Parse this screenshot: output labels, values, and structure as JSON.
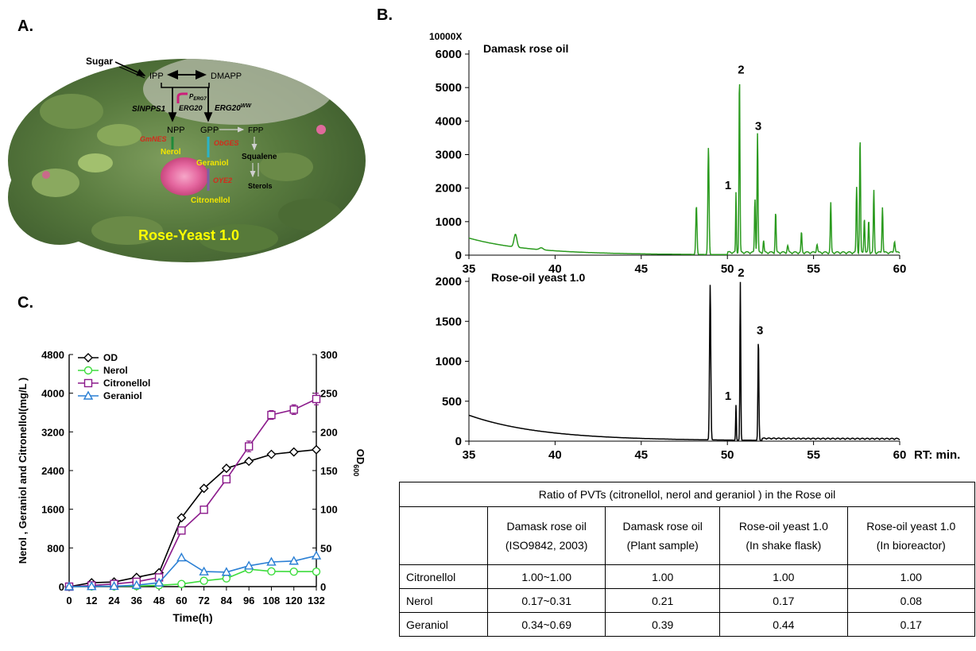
{
  "panel_a": {
    "label": "A.",
    "sugar": "Sugar",
    "ipp": "IPP",
    "dmapp": "DMAPP",
    "slnpps1": "SlNPPS1",
    "p_erg7": "P",
    "p_erg7_sub": "ERG7",
    "erg20": "ERG20",
    "erg20ww": "ERG20",
    "erg20ww_sup": "WW",
    "npp": "NPP",
    "gpp": "GPP",
    "fpp": "FPP",
    "gmnes": "GmNES",
    "obges": "ObGES",
    "nerol": "Nerol",
    "geraniol": "Geraniol",
    "squalene": "Squalene",
    "sterols": "Sterols",
    "oye2": "OYE2",
    "citronellol": "Citronellol",
    "banner": "Rose-Yeast 1.0",
    "colors": {
      "enzyme": "#d42a1c",
      "product": "#f2e600",
      "banner": "#ffff00",
      "promoter": "#cc1f7a"
    }
  },
  "panel_b": {
    "label": "B.",
    "top": {
      "scale_label": "10000X",
      "title": "Damask rose oil",
      "y_ticks": [
        "6000",
        "5000",
        "4000",
        "3000",
        "2000",
        "1000",
        "0"
      ],
      "y_max": 6000,
      "color": "#2a9a1e",
      "peaks": [
        {
          "label": "1",
          "x": 50.5,
          "y": 1780
        },
        {
          "label": "2",
          "x": 50.7,
          "y": 5230
        },
        {
          "label": "3",
          "x": 51.7,
          "y": 3550
        }
      ]
    },
    "bottom": {
      "title": "Rose-oil yeast 1.0",
      "y_ticks": [
        "2000",
        "1500",
        "1000",
        "500",
        "0"
      ],
      "y_max": 2000,
      "color": "#000000",
      "peaks": [
        {
          "label": "1",
          "x": 50.5,
          "y": 440
        },
        {
          "label": "2",
          "x": 50.7,
          "y": 1980
        },
        {
          "label": "3",
          "x": 51.8,
          "y": 1260
        }
      ]
    },
    "x_ticks": [
      "35",
      "40",
      "45",
      "50",
      "55",
      "60"
    ],
    "x_min": 35,
    "x_max": 60,
    "x_unit": "RT: min."
  },
  "panel_c": {
    "label": "C."
  },
  "chart_data": {
    "type": "line",
    "title": "",
    "xlabel": "Time(h)",
    "ylabel": "Nerol , Geraniol and Citronellol(mg/L )",
    "ylabel_right": "OD",
    "ylabel_right_sub": "600",
    "x": [
      0,
      12,
      24,
      36,
      48,
      60,
      72,
      84,
      96,
      108,
      120,
      132
    ],
    "x_ticks": [
      "0",
      "12",
      "24",
      "36",
      "48",
      "60",
      "72",
      "84",
      "96",
      "108",
      "120",
      "132"
    ],
    "ylim": [
      0,
      4800
    ],
    "y_ticks": [
      "0",
      "800",
      "1600",
      "2400",
      "3200",
      "4000",
      "4800"
    ],
    "ylim_right": [
      0,
      300
    ],
    "y_ticks_right": [
      "0",
      "50",
      "100",
      "150",
      "200",
      "250",
      "300"
    ],
    "legend_position": "top-left",
    "series": [
      {
        "name": "OD",
        "axis": "right",
        "marker": "diamond",
        "color": "#000000",
        "values": [
          0,
          5,
          6,
          12,
          18,
          89,
          127,
          153,
          162,
          171,
          174,
          177
        ]
      },
      {
        "name": "Nerol",
        "axis": "left",
        "marker": "circle",
        "color": "#3ddc3d",
        "values": [
          0,
          5,
          8,
          12,
          28,
          55,
          120,
          170,
          360,
          315,
          310,
          310
        ]
      },
      {
        "name": "Citronellol",
        "axis": "left",
        "marker": "square",
        "color": "#8b1a8b",
        "values": [
          0,
          25,
          55,
          100,
          190,
          1160,
          1590,
          2220,
          2900,
          3550,
          3660,
          3880
        ],
        "errors": [
          0,
          0,
          0,
          0,
          0,
          60,
          60,
          70,
          110,
          90,
          100,
          120
        ]
      },
      {
        "name": "Geraniol",
        "axis": "left",
        "marker": "triangle",
        "color": "#2a7fd4",
        "values": [
          0,
          5,
          10,
          30,
          80,
          600,
          310,
          300,
          430,
          510,
          530,
          640
        ]
      }
    ]
  },
  "table": {
    "title": "Ratio of PVTs (citronellol, nerol and geraniol ) in the Rose oil",
    "headers": [
      {
        "line1": "Damask rose oil",
        "line2": "(ISO9842, 2003)"
      },
      {
        "line1": "Damask rose oil",
        "line2": "(Plant sample)"
      },
      {
        "line1": "Rose-oil yeast 1.0",
        "line2": "(In shake flask)"
      },
      {
        "line1": "Rose-oil yeast 1.0",
        "line2": "(In bioreactor)"
      }
    ],
    "rows": [
      {
        "name": "Citronellol",
        "cells": [
          "1.00~1.00",
          "1.00",
          "1.00",
          "1.00"
        ]
      },
      {
        "name": "Nerol",
        "cells": [
          "0.17~0.31",
          "0.21",
          "0.17",
          "0.08"
        ]
      },
      {
        "name": "Geraniol",
        "cells": [
          "0.34~0.69",
          "0.39",
          "0.44",
          "0.17"
        ]
      }
    ]
  }
}
